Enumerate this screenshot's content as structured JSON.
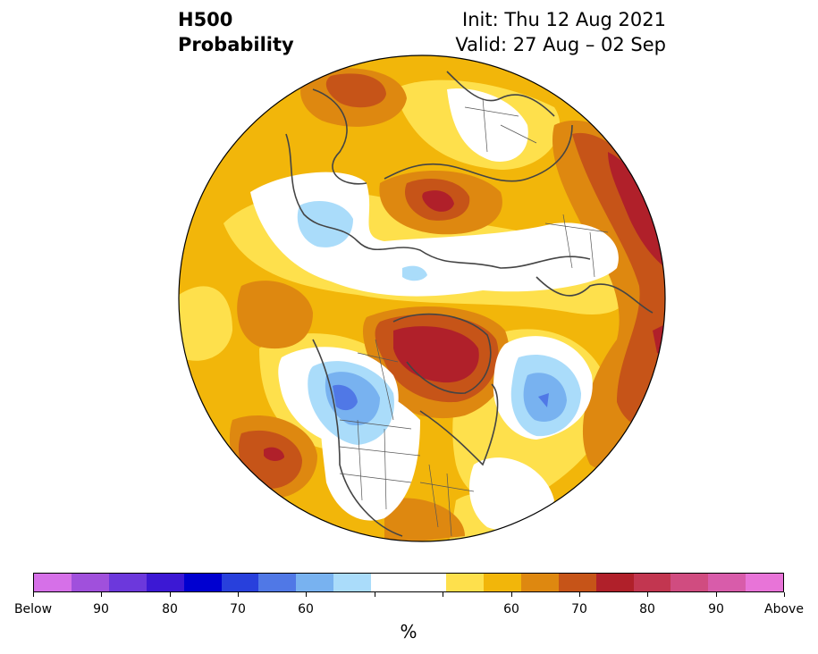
{
  "header": {
    "title_line1": "H500",
    "title_line2": "Probability",
    "init": "Init: Thu 12 Aug 2021",
    "valid": "Valid: 27 Aug – 02 Sep"
  },
  "colorbar": {
    "unit": "%",
    "colors": [
      "#d670e8",
      "#a050dc",
      "#6c38dc",
      "#3c18d4",
      "#0000d0",
      "#2840dc",
      "#5078e6",
      "#78b2f0",
      "#aadcfa",
      "#ffffff",
      "#ffffff",
      "#fee04c",
      "#f2b60a",
      "#de8810",
      "#c65418",
      "#b0202a",
      "#c23650",
      "#d04c80",
      "#d85caa",
      "#e874d8"
    ],
    "tick_labels": [
      "Below",
      "90",
      "80",
      "70",
      "60",
      "",
      "",
      "60",
      "70",
      "80",
      "90",
      "Above"
    ]
  },
  "map_colors": {
    "base": "#f2b60a",
    "light_yellow": "#fee04c",
    "orange": "#de8810",
    "dark_orange": "#c65418",
    "red": "#b0202a",
    "white": "#ffffff",
    "light_blue": "#aadcfa",
    "mid_blue": "#78b2f0",
    "blue": "#5078e6"
  }
}
